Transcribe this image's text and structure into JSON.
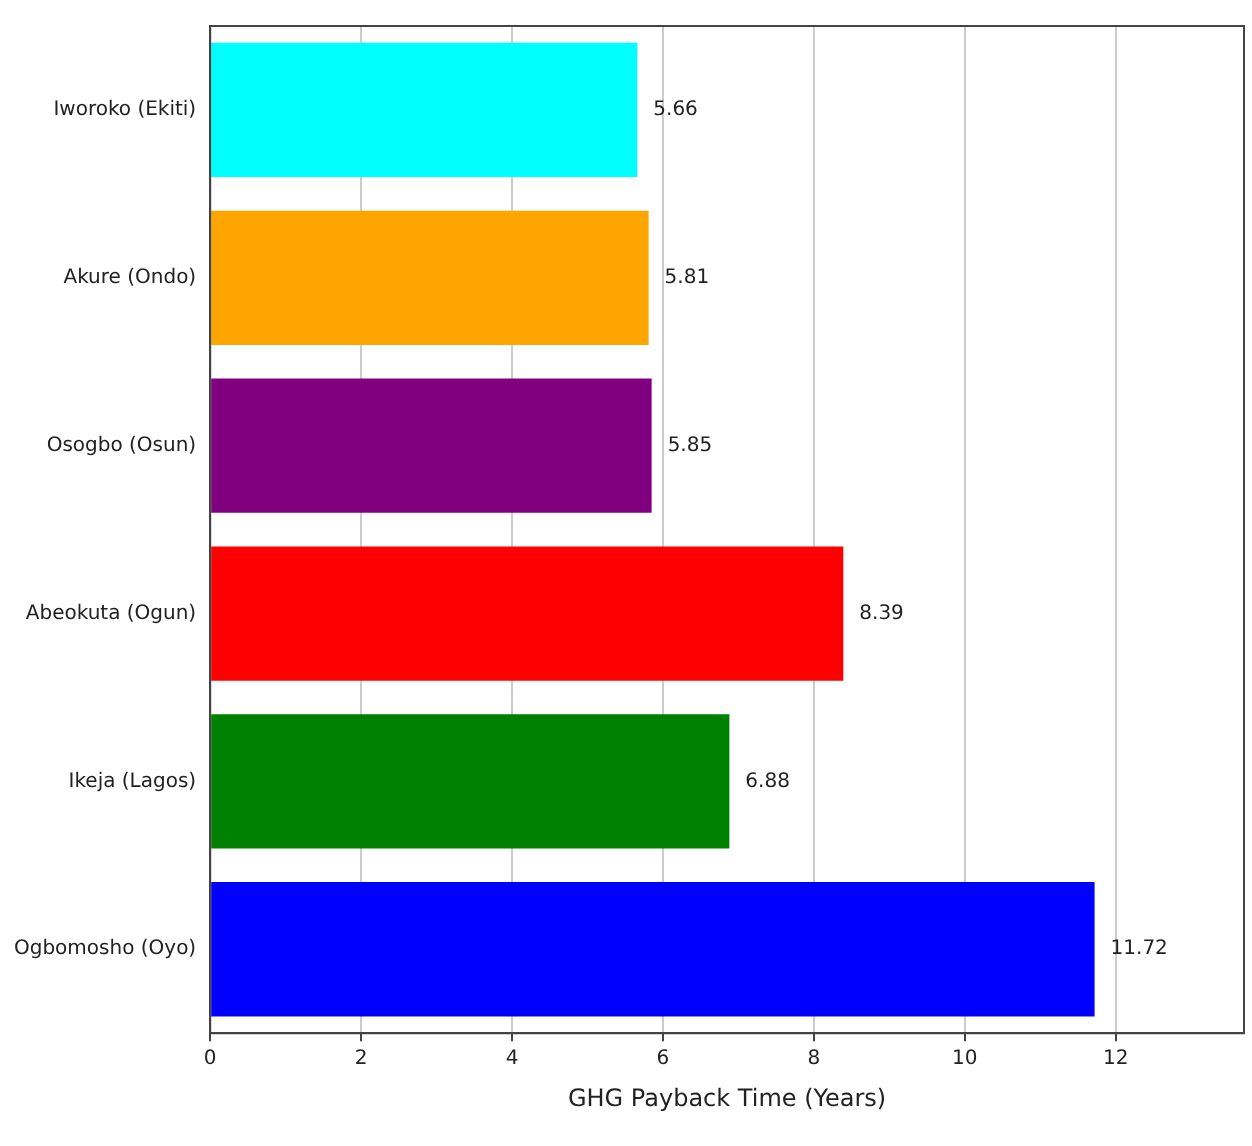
{
  "chart_data": {
    "type": "bar",
    "orientation": "horizontal",
    "xlabel": "GHG Payback Time (Years)",
    "categories": [
      "Iworoko (Ekiti)",
      "Akure (Ondo)",
      "Osogbo (Osun)",
      "Abeokuta (Ogun)",
      "Ikeja (Lagos)",
      "Ogbomosho (Oyo)"
    ],
    "values": [
      5.66,
      5.81,
      5.85,
      8.39,
      6.88,
      11.72
    ],
    "colors": [
      "#00ffff",
      "#ffa500",
      "#800080",
      "#ff0000",
      "#008000",
      "#0000ff"
    ],
    "xlim": [
      0,
      13.7
    ],
    "xticks": [
      0,
      2,
      4,
      6,
      8,
      10,
      12
    ],
    "grid": "x",
    "data_labels": true
  }
}
